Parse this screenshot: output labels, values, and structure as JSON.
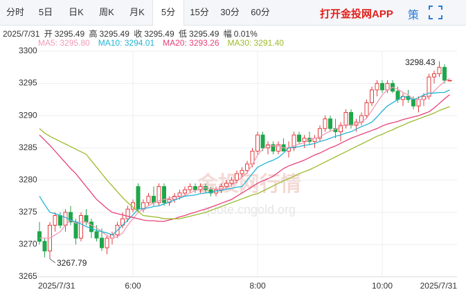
{
  "tabs": [
    "分时",
    "5日",
    "日K",
    "周K",
    "月K",
    "5分",
    "15分",
    "30分",
    "60分"
  ],
  "selected_tab": 5,
  "app_link": "打开金投网APP",
  "strategy": "策",
  "info": {
    "date": "2025/7/31",
    "open_label": "开",
    "high_label": "高",
    "close_label": "收",
    "low_label": "低",
    "change_label": "幅",
    "change": "0.01%"
  },
  "watermark": {
    "brand": "金投网行情",
    "url": "quote.cngold.org"
  },
  "chart_data": {
    "type": "candlestick",
    "categories": [
      "2025/7/31",
      null,
      null,
      null,
      null,
      null,
      null,
      null,
      null,
      null,
      null,
      null,
      null,
      null,
      null,
      null,
      null,
      null,
      "6:00",
      null,
      null,
      null,
      null,
      null,
      null,
      null,
      null,
      null,
      null,
      null,
      null,
      null,
      null,
      null,
      null,
      null,
      null,
      null,
      null,
      null,
      null,
      null,
      "8:00",
      null,
      null,
      null,
      null,
      null,
      null,
      null,
      null,
      null,
      null,
      null,
      null,
      null,
      null,
      null,
      null,
      null,
      null,
      null,
      null,
      null,
      null,
      null,
      "10:00",
      null,
      null,
      null,
      null,
      null,
      null,
      null,
      null,
      null,
      null,
      null,
      null,
      "2025/7/31"
    ],
    "open": [
      3272,
      3270.5,
      3269,
      3273,
      3274.5,
      3273,
      3275,
      3273.5,
      3271,
      3274.5,
      3273.5,
      3272,
      3271,
      3269.5,
      3271,
      3271.5,
      3273,
      3274,
      3275.5,
      3279,
      3275.5,
      3276.5,
      3277.5,
      3276.5,
      3279,
      3276.5,
      3277,
      3277.5,
      3278,
      3278.5,
      3279,
      3278.5,
      3279,
      3278.5,
      3278,
      3278.5,
      3279,
      3279.5,
      3280,
      3281,
      3281.5,
      3282.5,
      3284.5,
      3287,
      3285,
      3285.5,
      3284.5,
      3285.5,
      3284.5,
      3285,
      3287,
      3286,
      3286.5,
      3286,
      3286.5,
      3288,
      3289.5,
      3288,
      3287.5,
      3288.5,
      3290.5,
      3288.5,
      3289,
      3290,
      3292,
      3294,
      3295,
      3294,
      3295,
      3293.8,
      3292.5,
      3293,
      3292.5,
      3291.5,
      3292.5,
      3293,
      3296,
      3296.5,
      3297.5,
      3295.49
    ],
    "high": [
      3273.5,
      3271,
      3273.5,
      3275,
      3275,
      3275.5,
      3276,
      3274,
      3275,
      3275.5,
      3274,
      3273,
      3272.5,
      3271.5,
      3272,
      3273.5,
      3275,
      3276,
      3277,
      3279.5,
      3277,
      3278,
      3279,
      3279.5,
      3279.5,
      3277.5,
      3278,
      3278.5,
      3279,
      3279.5,
      3279.5,
      3279.5,
      3279.5,
      3279,
      3279,
      3279.5,
      3280,
      3280.5,
      3281.5,
      3282,
      3283,
      3285,
      3287.5,
      3287.5,
      3286,
      3286,
      3286,
      3286.5,
      3286,
      3287.5,
      3287.5,
      3287,
      3287.5,
      3287,
      3288.5,
      3290,
      3290,
      3289.5,
      3289,
      3291,
      3291,
      3289.5,
      3290.5,
      3292.5,
      3294.5,
      3295.5,
      3295.5,
      3295.5,
      3295.5,
      3294.5,
      3293.5,
      3294,
      3293,
      3293,
      3293.5,
      3296.5,
      3297,
      3298.43,
      3298,
      3295.49
    ],
    "low": [
      3270,
      3268,
      3267.79,
      3272,
      3272.5,
      3272,
      3273,
      3270,
      3270.5,
      3273,
      3271,
      3270.5,
      3269,
      3268.5,
      3270,
      3271,
      3272.5,
      3273.5,
      3275,
      3275,
      3275,
      3276,
      3276,
      3276,
      3276,
      3276,
      3276.5,
      3277,
      3277.5,
      3278,
      3278,
      3278,
      3278,
      3277.5,
      3277.5,
      3278,
      3278.5,
      3279,
      3279.5,
      3280.5,
      3281,
      3282,
      3284,
      3284.5,
      3284,
      3284,
      3284,
      3284.5,
      3283.5,
      3284.5,
      3285.5,
      3285,
      3285.5,
      3285,
      3286,
      3287.5,
      3287.5,
      3286.5,
      3286,
      3288,
      3288,
      3287.5,
      3288.5,
      3289.5,
      3291.5,
      3293,
      3293.5,
      3293.5,
      3293.5,
      3292,
      3291.5,
      3292,
      3291,
      3290.5,
      3291.5,
      3292.5,
      3295,
      3296,
      3295,
      3295.49
    ],
    "close": [
      3270.5,
      3269,
      3273,
      3274.5,
      3273,
      3275,
      3273.5,
      3271,
      3274.5,
      3273.5,
      3272,
      3271,
      3269.5,
      3271,
      3271.5,
      3273,
      3274,
      3275.5,
      3276.5,
      3275.5,
      3276.5,
      3277.5,
      3276.5,
      3279,
      3276.5,
      3277,
      3277.5,
      3278,
      3278.5,
      3279,
      3278.5,
      3279,
      3278.5,
      3278,
      3278.5,
      3279,
      3279.5,
      3280,
      3281,
      3281.5,
      3282.5,
      3284.5,
      3287,
      3285,
      3285.5,
      3284.5,
      3285.5,
      3284.5,
      3285,
      3287,
      3286,
      3286.5,
      3286,
      3286.5,
      3288,
      3289.5,
      3288,
      3287.5,
      3288.5,
      3290.5,
      3288.5,
      3289,
      3290,
      3292,
      3294,
      3295,
      3294,
      3295,
      3293.8,
      3292.5,
      3293,
      3292.5,
      3291.5,
      3292.5,
      3293,
      3296,
      3296.5,
      3297.5,
      3295.5,
      3295.49
    ],
    "series": [
      {
        "name": "MA5: 3295.80",
        "color": "#f29bb5",
        "values": [
          3271,
          3271,
          3271,
          3271.5,
          3272,
          3273,
          3273.8,
          3273.3,
          3273.5,
          3273.5,
          3273,
          3272.6,
          3272,
          3271.4,
          3271,
          3271.2,
          3271.8,
          3273,
          3274,
          3275,
          3275.5,
          3276,
          3276.5,
          3276.8,
          3277,
          3277.2,
          3277.4,
          3277.4,
          3277.6,
          3278,
          3278.4,
          3278.6,
          3278.8,
          3278.7,
          3278.6,
          3278.7,
          3278.8,
          3279.2,
          3279.8,
          3280.4,
          3281.2,
          3282.4,
          3283.9,
          3284.8,
          3285.4,
          3285.3,
          3285.3,
          3285,
          3285,
          3285.3,
          3285.6,
          3285.8,
          3286.3,
          3286.5,
          3286.7,
          3287.2,
          3287.6,
          3287.9,
          3288.3,
          3288.6,
          3288.5,
          3288.7,
          3289,
          3289.6,
          3290.8,
          3292,
          3293.2,
          3294,
          3294.4,
          3294.1,
          3293.6,
          3293.2,
          3292.6,
          3292.5,
          3292.5,
          3293,
          3293.8,
          3294.6,
          3295.3,
          3295.8
        ]
      },
      {
        "name": "MA10: 3294.01",
        "color": "#22b3d3",
        "values": [
          3277.5,
          3276.2,
          3275,
          3274.8,
          3274.5,
          3274.2,
          3273.8,
          3273.5,
          3273.2,
          3272.8,
          3272.5,
          3272.2,
          3272,
          3271.8,
          3271.5,
          3272.2,
          3273,
          3273.8,
          3274.6,
          3275.5,
          3275.6,
          3275.7,
          3275.9,
          3276,
          3276.3,
          3276.6,
          3276.9,
          3277.2,
          3277.5,
          3277.6,
          3277.7,
          3277.9,
          3278,
          3278.1,
          3278.3,
          3278.4,
          3278.6,
          3278.7,
          3278.9,
          3279,
          3280,
          3281,
          3282,
          3282.4,
          3282.8,
          3283.1,
          3283.5,
          3284.2,
          3285,
          3285.1,
          3285.2,
          3285.4,
          3285.5,
          3285.7,
          3286,
          3286.2,
          3286.5,
          3286.8,
          3287,
          3287.3,
          3287.5,
          3287.9,
          3288.3,
          3288.6,
          3289,
          3289.8,
          3290.7,
          3291.5,
          3292,
          3292.5,
          3293,
          3292.8,
          3292.5,
          3292.8,
          3293.2,
          3293.5,
          3293.5,
          3293.6,
          3293.6,
          3294.01
        ]
      },
      {
        "name": "MA20: 3293.26",
        "color": "#e6407a",
        "values": [
          3287,
          3286.2,
          3285.4,
          3284.5,
          3283.6,
          3282.7,
          3281.8,
          3281,
          3280,
          3279,
          3278,
          3277,
          3276.3,
          3275.6,
          3275,
          3274.8,
          3274.6,
          3274.4,
          3274.2,
          3274,
          3273.8,
          3273.7,
          3273.7,
          3273.6,
          3273.6,
          3273.8,
          3274,
          3274.3,
          3274.5,
          3274.8,
          3275,
          3275.3,
          3275.5,
          3275.8,
          3276.1,
          3276.4,
          3276.7,
          3277,
          3277.5,
          3278,
          3278.5,
          3279,
          3279.5,
          3279.9,
          3280.2,
          3280.6,
          3281.2,
          3281.8,
          3282.2,
          3282.5,
          3282.8,
          3283.1,
          3283.5,
          3283.9,
          3284.2,
          3284.6,
          3285,
          3285.3,
          3285.7,
          3286.1,
          3286.5,
          3286.8,
          3287.1,
          3287.4,
          3287.7,
          3288,
          3288.4,
          3288.7,
          3288.9,
          3289.1,
          3289.4,
          3289.6,
          3289.8,
          3290,
          3290.3,
          3290.6,
          3291.2,
          3291.9,
          3292.6,
          3293.26
        ]
      },
      {
        "name": "MA30: 3291.40",
        "color": "#9cba2c",
        "values": [
          3288,
          3287.3,
          3286.8,
          3286.4,
          3286,
          3285.6,
          3285.2,
          3284.8,
          3284.4,
          3284,
          3283,
          3282,
          3281,
          3280,
          3279.1,
          3278.2,
          3277.3,
          3276.5,
          3275.8,
          3275.1,
          3274.5,
          3274.4,
          3274.3,
          3274.2,
          3274,
          3274,
          3274,
          3274,
          3274.2,
          3274.4,
          3274.6,
          3274.8,
          3275,
          3275.3,
          3275.6,
          3275.9,
          3276.2,
          3276.5,
          3276.8,
          3277.1,
          3277.4,
          3277.7,
          3277.9,
          3278.3,
          3278.7,
          3279.1,
          3279.5,
          3279.9,
          3280.2,
          3280.6,
          3281,
          3281.3,
          3281.6,
          3282,
          3282.4,
          3282.8,
          3283.2,
          3283.6,
          3284,
          3284.4,
          3284.8,
          3285.2,
          3285.6,
          3286,
          3286.4,
          3286.8,
          3287.1,
          3287.5,
          3287.8,
          3288.2,
          3288.5,
          3288.9,
          3289.2,
          3289.5,
          3289.8,
          3290.1,
          3290.4,
          3290.8,
          3291.1,
          3291.4
        ]
      }
    ],
    "ylim": [
      3265,
      3300
    ],
    "yticks": [
      3265,
      3270,
      3275,
      3280,
      3285,
      3290,
      3295,
      3300
    ],
    "grid": true,
    "up_color": "#e23b3b",
    "down_color": "#1fa64a"
  }
}
